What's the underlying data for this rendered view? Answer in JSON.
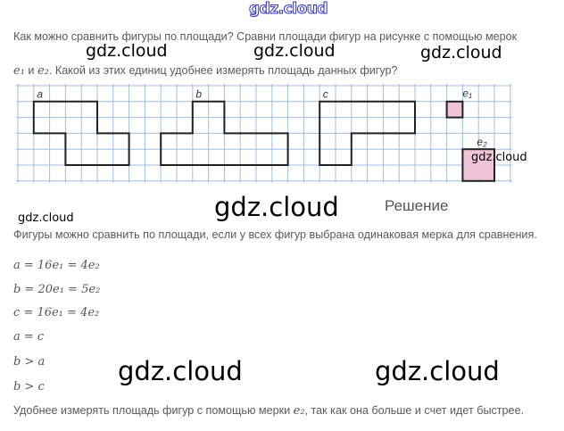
{
  "site_logo": "gdz.cloud",
  "question": {
    "line1": "Как можно сравнить фигуры по площади? Сравни площади фигур на рисунке с помощью мерок",
    "line2_prefix_e1": "e₁",
    "line2_and": " и ",
    "line2_e2": "e₂",
    "line2_rest": ". Какой из этих единиц удобнее измерять площадь данных фигур?"
  },
  "figure": {
    "labels": {
      "a": "a",
      "b": "b",
      "c": "c",
      "e1": "e₁",
      "e2": "e₂"
    },
    "colors": {
      "grid": "#9fbde0",
      "outline": "#222222",
      "unit_fill": "#f0c4d8"
    }
  },
  "solution": {
    "heading": "Решение",
    "intro": "Фигуры можно сравнить по площади, если у всех фигур выбрана одинаковая мерка для сравнения.",
    "formulas": [
      "a = 16e₁ = 4e₂",
      "b = 20e₁ = 5e₂",
      "c = 16e₁ = 4e₂",
      "a = c",
      "b > a",
      "b > c"
    ],
    "conclusion_prefix": "Удобнее измерять площадь фигур с помощью мерки ",
    "conclusion_e2": "e₂",
    "conclusion_rest": ", так как она больше и счет идет быстрее."
  },
  "watermarks": [
    "gdz.cloud",
    "gdz.cloud",
    "gdz.cloud",
    "gdz.cloud",
    "gdz.cloud",
    "gdz.cloud",
    "gdz.cloud",
    "gdz.cloud"
  ]
}
